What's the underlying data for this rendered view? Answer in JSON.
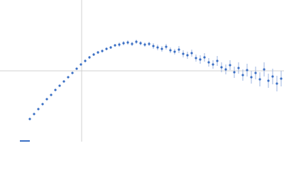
{
  "chart_data": {
    "type": "scatter",
    "x": [
      -73,
      -67,
      -61,
      -55,
      -49,
      -43,
      -37,
      -31,
      -25,
      -19,
      -13,
      -7,
      -1,
      5,
      11,
      17,
      23,
      29,
      35,
      41,
      47,
      53,
      59,
      65,
      71,
      77,
      83,
      89,
      95,
      101,
      107,
      113,
      119,
      125,
      131,
      137,
      143,
      149,
      155,
      161,
      167,
      173,
      179,
      185,
      191,
      197,
      203,
      209,
      215,
      221,
      227,
      233,
      239,
      245,
      251,
      257,
      263,
      269,
      275,
      281
    ],
    "values": [
      -68,
      -61,
      -54,
      -47,
      -40,
      -34,
      -27,
      -21,
      -15,
      -9,
      -3,
      3,
      9,
      14,
      19,
      23,
      26,
      28,
      31,
      33,
      36,
      37,
      39,
      40,
      38,
      41,
      39,
      37,
      38,
      35,
      33,
      31,
      34,
      29,
      27,
      30,
      24,
      22,
      25,
      18,
      16,
      19,
      12,
      9,
      14,
      5,
      2,
      8,
      -2,
      4,
      -6,
      1,
      -9,
      -3,
      -12,
      2,
      -14,
      -8,
      -18,
      -11
    ],
    "errors": [
      1,
      1,
      1,
      1,
      1,
      1,
      1,
      1,
      1,
      1,
      1,
      1,
      1,
      2,
      2,
      2,
      2,
      2,
      2,
      2,
      2,
      3,
      3,
      3,
      3,
      3,
      3,
      3,
      3,
      4,
      4,
      4,
      4,
      4,
      4,
      5,
      5,
      5,
      5,
      5,
      6,
      6,
      6,
      6,
      7,
      7,
      7,
      7,
      8,
      8,
      8,
      9,
      9,
      9,
      10,
      10,
      10,
      11,
      11,
      11
    ],
    "color": "#3a6fc4",
    "xlim": [
      -115,
      285
    ],
    "ylim": [
      -100,
      100
    ]
  }
}
